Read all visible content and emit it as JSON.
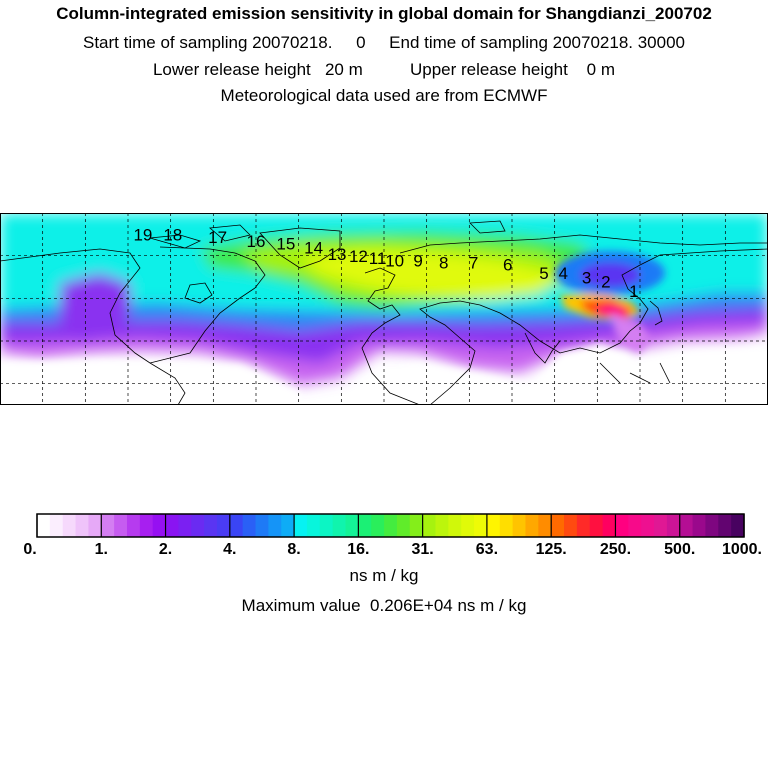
{
  "header": {
    "title": "Column-integrated emission sensitivity in global domain for Shangdianzi_200702",
    "line2": "Start time of sampling 20070218.     0     End time of sampling 20070218. 30000",
    "line3": "Lower release height   20 m          Upper release height    0 m",
    "line4": "Meteorological data used are from ECMWF"
  },
  "map": {
    "lon_range": [
      -180,
      180
    ],
    "lat_range": [
      -10,
      80
    ],
    "grid_lon_step": 20,
    "grid_lat_step": 20,
    "trajectory_labels": [
      "1",
      "2",
      "3",
      "4",
      "5",
      "6",
      "7",
      "8",
      "9",
      "10",
      "11",
      "12",
      "13",
      "14",
      "15",
      "16",
      "17",
      "18",
      "19"
    ],
    "trajectory_points": [
      {
        "label": "1",
        "lon": 117.1,
        "lat": 40.6
      },
      {
        "label": "2",
        "lon": 104,
        "lat": 45
      },
      {
        "label": "3",
        "lon": 95,
        "lat": 47
      },
      {
        "label": "4",
        "lon": 84,
        "lat": 49
      },
      {
        "label": "5",
        "lon": 75,
        "lat": 49
      },
      {
        "label": "6",
        "lon": 58,
        "lat": 53
      },
      {
        "label": "7",
        "lon": 42,
        "lat": 54
      },
      {
        "label": "8",
        "lon": 28,
        "lat": 54
      },
      {
        "label": "9",
        "lon": 16,
        "lat": 55
      },
      {
        "label": "10",
        "lon": 5,
        "lat": 55
      },
      {
        "label": "11",
        "lon": -3,
        "lat": 56
      },
      {
        "label": "12",
        "lon": -12,
        "lat": 57
      },
      {
        "label": "13",
        "lon": -22,
        "lat": 58
      },
      {
        "label": "14",
        "lon": -33,
        "lat": 61
      },
      {
        "label": "15",
        "lon": -46,
        "lat": 63
      },
      {
        "label": "16",
        "lon": -60,
        "lat": 64
      },
      {
        "label": "17",
        "lon": -78,
        "lat": 66
      },
      {
        "label": "18",
        "lon": -99,
        "lat": 67
      },
      {
        "label": "19",
        "lon": -113,
        "lat": 67
      }
    ]
  },
  "colorbar": {
    "tick_labels": [
      "0.",
      "1.",
      "2.",
      "4.",
      "8.",
      "16.",
      "31.",
      "63.",
      "125.",
      "250.",
      "500.",
      "1000."
    ],
    "colors": [
      "#ffffff",
      "#fbeefe",
      "#f6d9fc",
      "#efc3fa",
      "#e6a9f7",
      "#d47ef2",
      "#c65cf0",
      "#b63bef",
      "#a71ff0",
      "#9610f2",
      "#8a14f2",
      "#7b20f2",
      "#6a2bf2",
      "#5a35f2",
      "#4a3cf4",
      "#3a45f5",
      "#2a60f6",
      "#1e7af6",
      "#1594f7",
      "#0eacf6",
      "#06f2f2",
      "#08f5dc",
      "#0cf5c4",
      "#10f4ad",
      "#14f397",
      "#1bf075",
      "#2aee5b",
      "#44ec3f",
      "#60ec2a",
      "#84ee1a",
      "#a6f20f",
      "#bcf50c",
      "#d0f80a",
      "#e0fa08",
      "#eefb06",
      "#fff500",
      "#ffde00",
      "#ffc400",
      "#ffa800",
      "#ff8c00",
      "#ff6a00",
      "#ff4a10",
      "#ff2a28",
      "#ff1040",
      "#ff0060",
      "#ff0080",
      "#f70a8a",
      "#ee1090",
      "#e01894",
      "#cc1496",
      "#b40e94",
      "#9a088c",
      "#7e0680",
      "#620470",
      "#480260"
    ],
    "units": "ns m / kg",
    "maximum_text": "Maximum value  0.206E+04 ns m / kg"
  }
}
